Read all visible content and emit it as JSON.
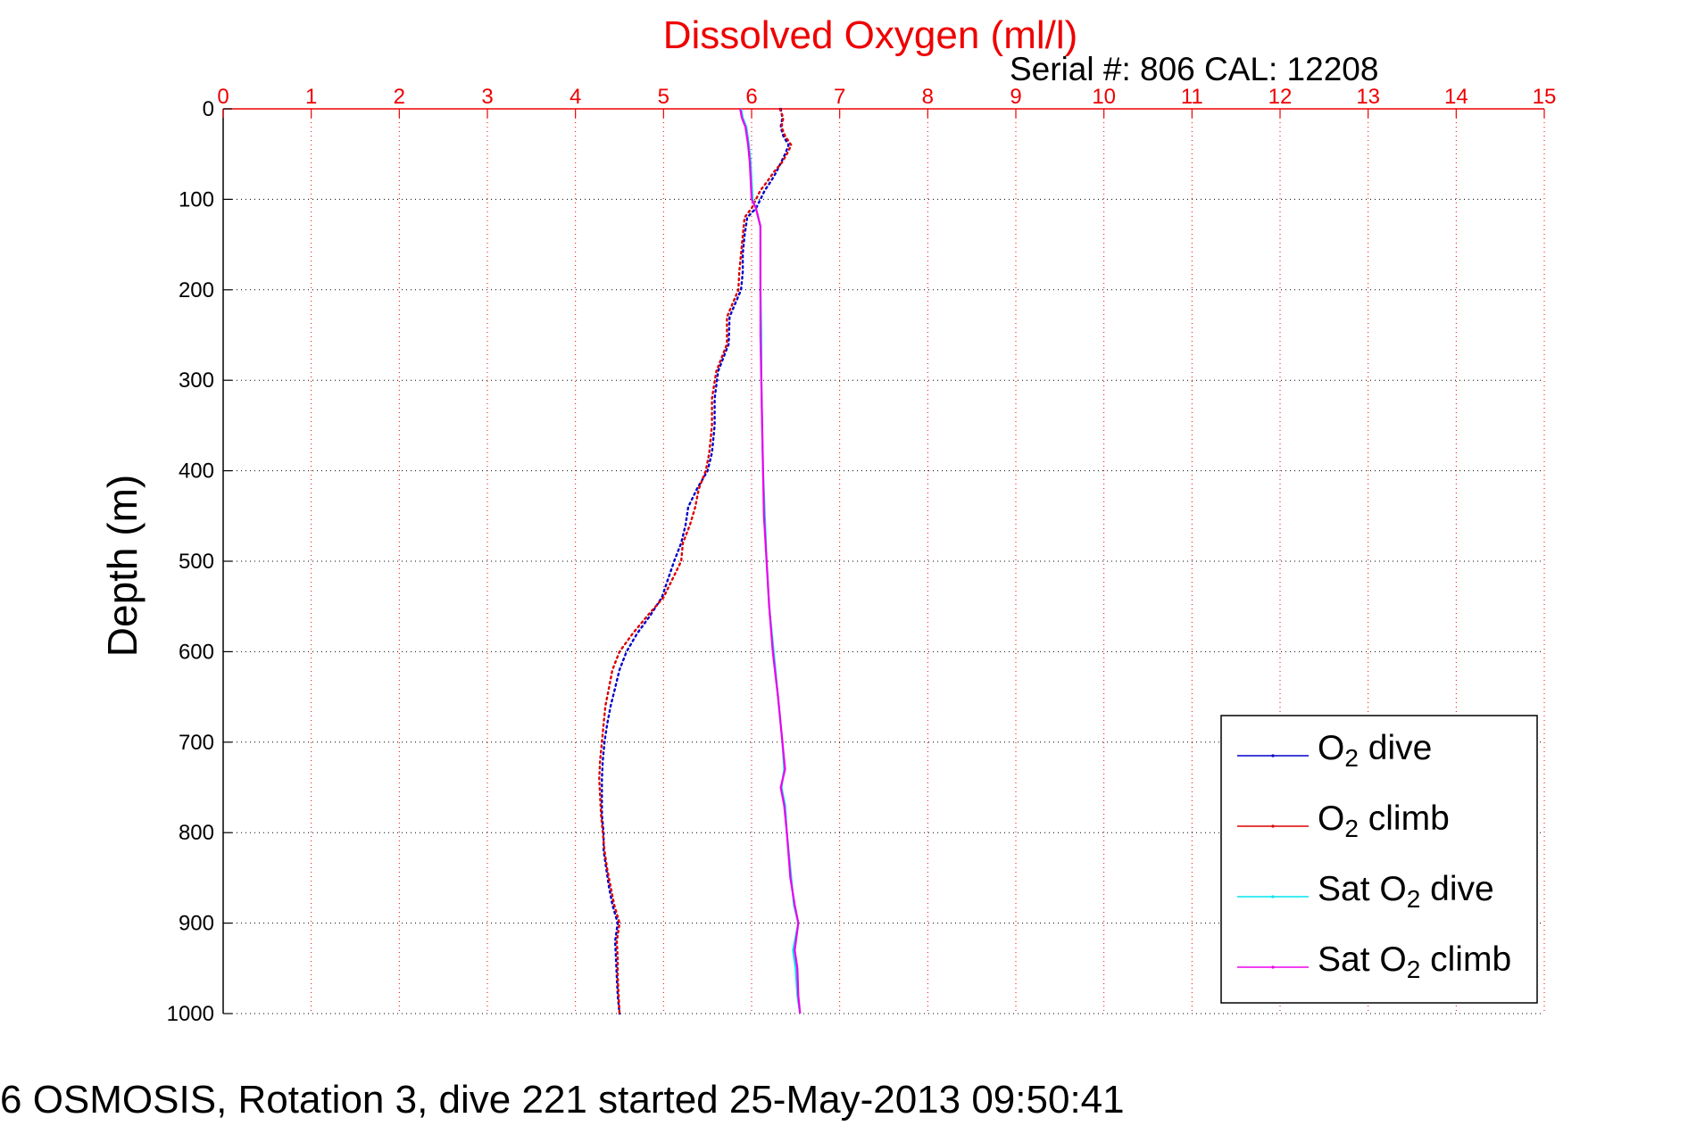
{
  "chart_data": {
    "type": "line",
    "title": "Dissolved Oxygen (ml/l)",
    "subtitle": "Serial #: 806  CAL: 12208",
    "xlabel": "Dissolved Oxygen (ml/l)",
    "ylabel": "Depth (m)",
    "xlim": [
      0,
      15
    ],
    "ylim": [
      0,
      1000
    ],
    "y_reversed": true,
    "x_axis_position": "top",
    "xticks": [
      0,
      1,
      2,
      3,
      4,
      5,
      6,
      7,
      8,
      9,
      10,
      11,
      12,
      13,
      14,
      15
    ],
    "yticks": [
      0,
      100,
      200,
      300,
      400,
      500,
      600,
      700,
      800,
      900,
      1000
    ],
    "grid": true,
    "legend_position": "bottom-right",
    "series": [
      {
        "name": "O2 dive",
        "label_main": "O",
        "label_sub": "2",
        "label_rest": " dive",
        "color": "#0000cc",
        "style": "dotted",
        "depth": [
          0,
          10,
          20,
          30,
          40,
          50,
          60,
          70,
          80,
          90,
          100,
          110,
          120,
          140,
          160,
          180,
          200,
          230,
          260,
          290,
          320,
          350,
          380,
          400,
          420,
          440,
          460,
          480,
          500,
          520,
          540,
          560,
          580,
          600,
          620,
          640,
          660,
          680,
          700,
          720,
          740,
          760,
          780,
          800,
          820,
          840,
          860,
          880,
          900,
          920,
          940,
          960,
          980,
          1000
        ],
        "values": [
          6.33,
          6.35,
          6.33,
          6.36,
          6.42,
          6.38,
          6.33,
          6.28,
          6.22,
          6.15,
          6.1,
          6.05,
          5.95,
          5.92,
          5.9,
          5.9,
          5.88,
          5.75,
          5.74,
          5.62,
          5.58,
          5.58,
          5.55,
          5.5,
          5.38,
          5.28,
          5.25,
          5.2,
          5.12,
          5.05,
          4.98,
          4.85,
          4.7,
          4.58,
          4.5,
          4.45,
          4.4,
          4.36,
          4.33,
          4.31,
          4.3,
          4.3,
          4.3,
          4.32,
          4.32,
          4.35,
          4.38,
          4.42,
          4.48,
          4.45,
          4.46,
          4.47,
          4.48,
          4.5
        ]
      },
      {
        "name": "O2 climb",
        "label_main": "O",
        "label_sub": "2",
        "label_rest": " climb",
        "color": "#dd0000",
        "style": "dotted",
        "depth": [
          0,
          10,
          20,
          30,
          40,
          50,
          60,
          70,
          80,
          90,
          100,
          110,
          120,
          140,
          160,
          180,
          200,
          230,
          260,
          290,
          320,
          350,
          380,
          400,
          420,
          440,
          460,
          480,
          500,
          520,
          540,
          560,
          580,
          600,
          620,
          640,
          660,
          680,
          700,
          720,
          740,
          760,
          780,
          800,
          820,
          840,
          860,
          880,
          900,
          920,
          940,
          960,
          980,
          1000
        ],
        "values": [
          6.32,
          6.36,
          6.34,
          6.38,
          6.45,
          6.4,
          6.34,
          6.25,
          6.18,
          6.1,
          6.05,
          6.0,
          5.92,
          5.9,
          5.88,
          5.86,
          5.85,
          5.72,
          5.72,
          5.6,
          5.55,
          5.55,
          5.52,
          5.48,
          5.4,
          5.36,
          5.3,
          5.22,
          5.2,
          5.1,
          5.0,
          4.82,
          4.65,
          4.5,
          4.42,
          4.38,
          4.34,
          4.32,
          4.3,
          4.28,
          4.27,
          4.28,
          4.29,
          4.31,
          4.33,
          4.36,
          4.4,
          4.44,
          4.5,
          4.47,
          4.48,
          4.48,
          4.49,
          4.5
        ]
      },
      {
        "name": "Sat O2 dive",
        "label_main": "Sat O",
        "label_sub": "2",
        "label_rest": " dive",
        "color": "#00e5ee",
        "style": "solid",
        "depth": [
          0,
          10,
          20,
          40,
          60,
          80,
          100,
          110,
          130,
          160,
          200,
          250,
          300,
          350,
          400,
          450,
          500,
          550,
          600,
          650,
          700,
          730,
          750,
          770,
          800,
          850,
          880,
          900,
          930,
          950,
          980,
          1000
        ],
        "values": [
          5.88,
          5.9,
          5.94,
          5.97,
          5.99,
          6.0,
          6.01,
          6.05,
          6.1,
          6.1,
          6.1,
          6.11,
          6.11,
          6.12,
          6.13,
          6.15,
          6.17,
          6.2,
          6.25,
          6.3,
          6.35,
          6.37,
          6.34,
          6.38,
          6.4,
          6.45,
          6.48,
          6.53,
          6.47,
          6.5,
          6.52,
          6.55
        ]
      },
      {
        "name": "Sat O2 climb",
        "label_main": "Sat O",
        "label_sub": "2",
        "label_rest": " climb",
        "color": "#ee00ee",
        "style": "solid",
        "depth": [
          0,
          10,
          20,
          40,
          60,
          80,
          100,
          110,
          130,
          160,
          200,
          250,
          300,
          350,
          400,
          450,
          500,
          550,
          600,
          650,
          700,
          730,
          750,
          770,
          800,
          850,
          880,
          900,
          930,
          950,
          980,
          1000
        ],
        "values": [
          5.87,
          5.89,
          5.93,
          5.96,
          5.98,
          5.99,
          6.0,
          6.05,
          6.1,
          6.1,
          6.1,
          6.1,
          6.11,
          6.12,
          6.13,
          6.14,
          6.17,
          6.2,
          6.24,
          6.3,
          6.35,
          6.38,
          6.33,
          6.37,
          6.4,
          6.44,
          6.49,
          6.53,
          6.49,
          6.52,
          6.53,
          6.55
        ]
      }
    ]
  },
  "caption": "6 OSMOSIS, Rotation 3, dive 221 started 25-May-2013 09:50:41"
}
